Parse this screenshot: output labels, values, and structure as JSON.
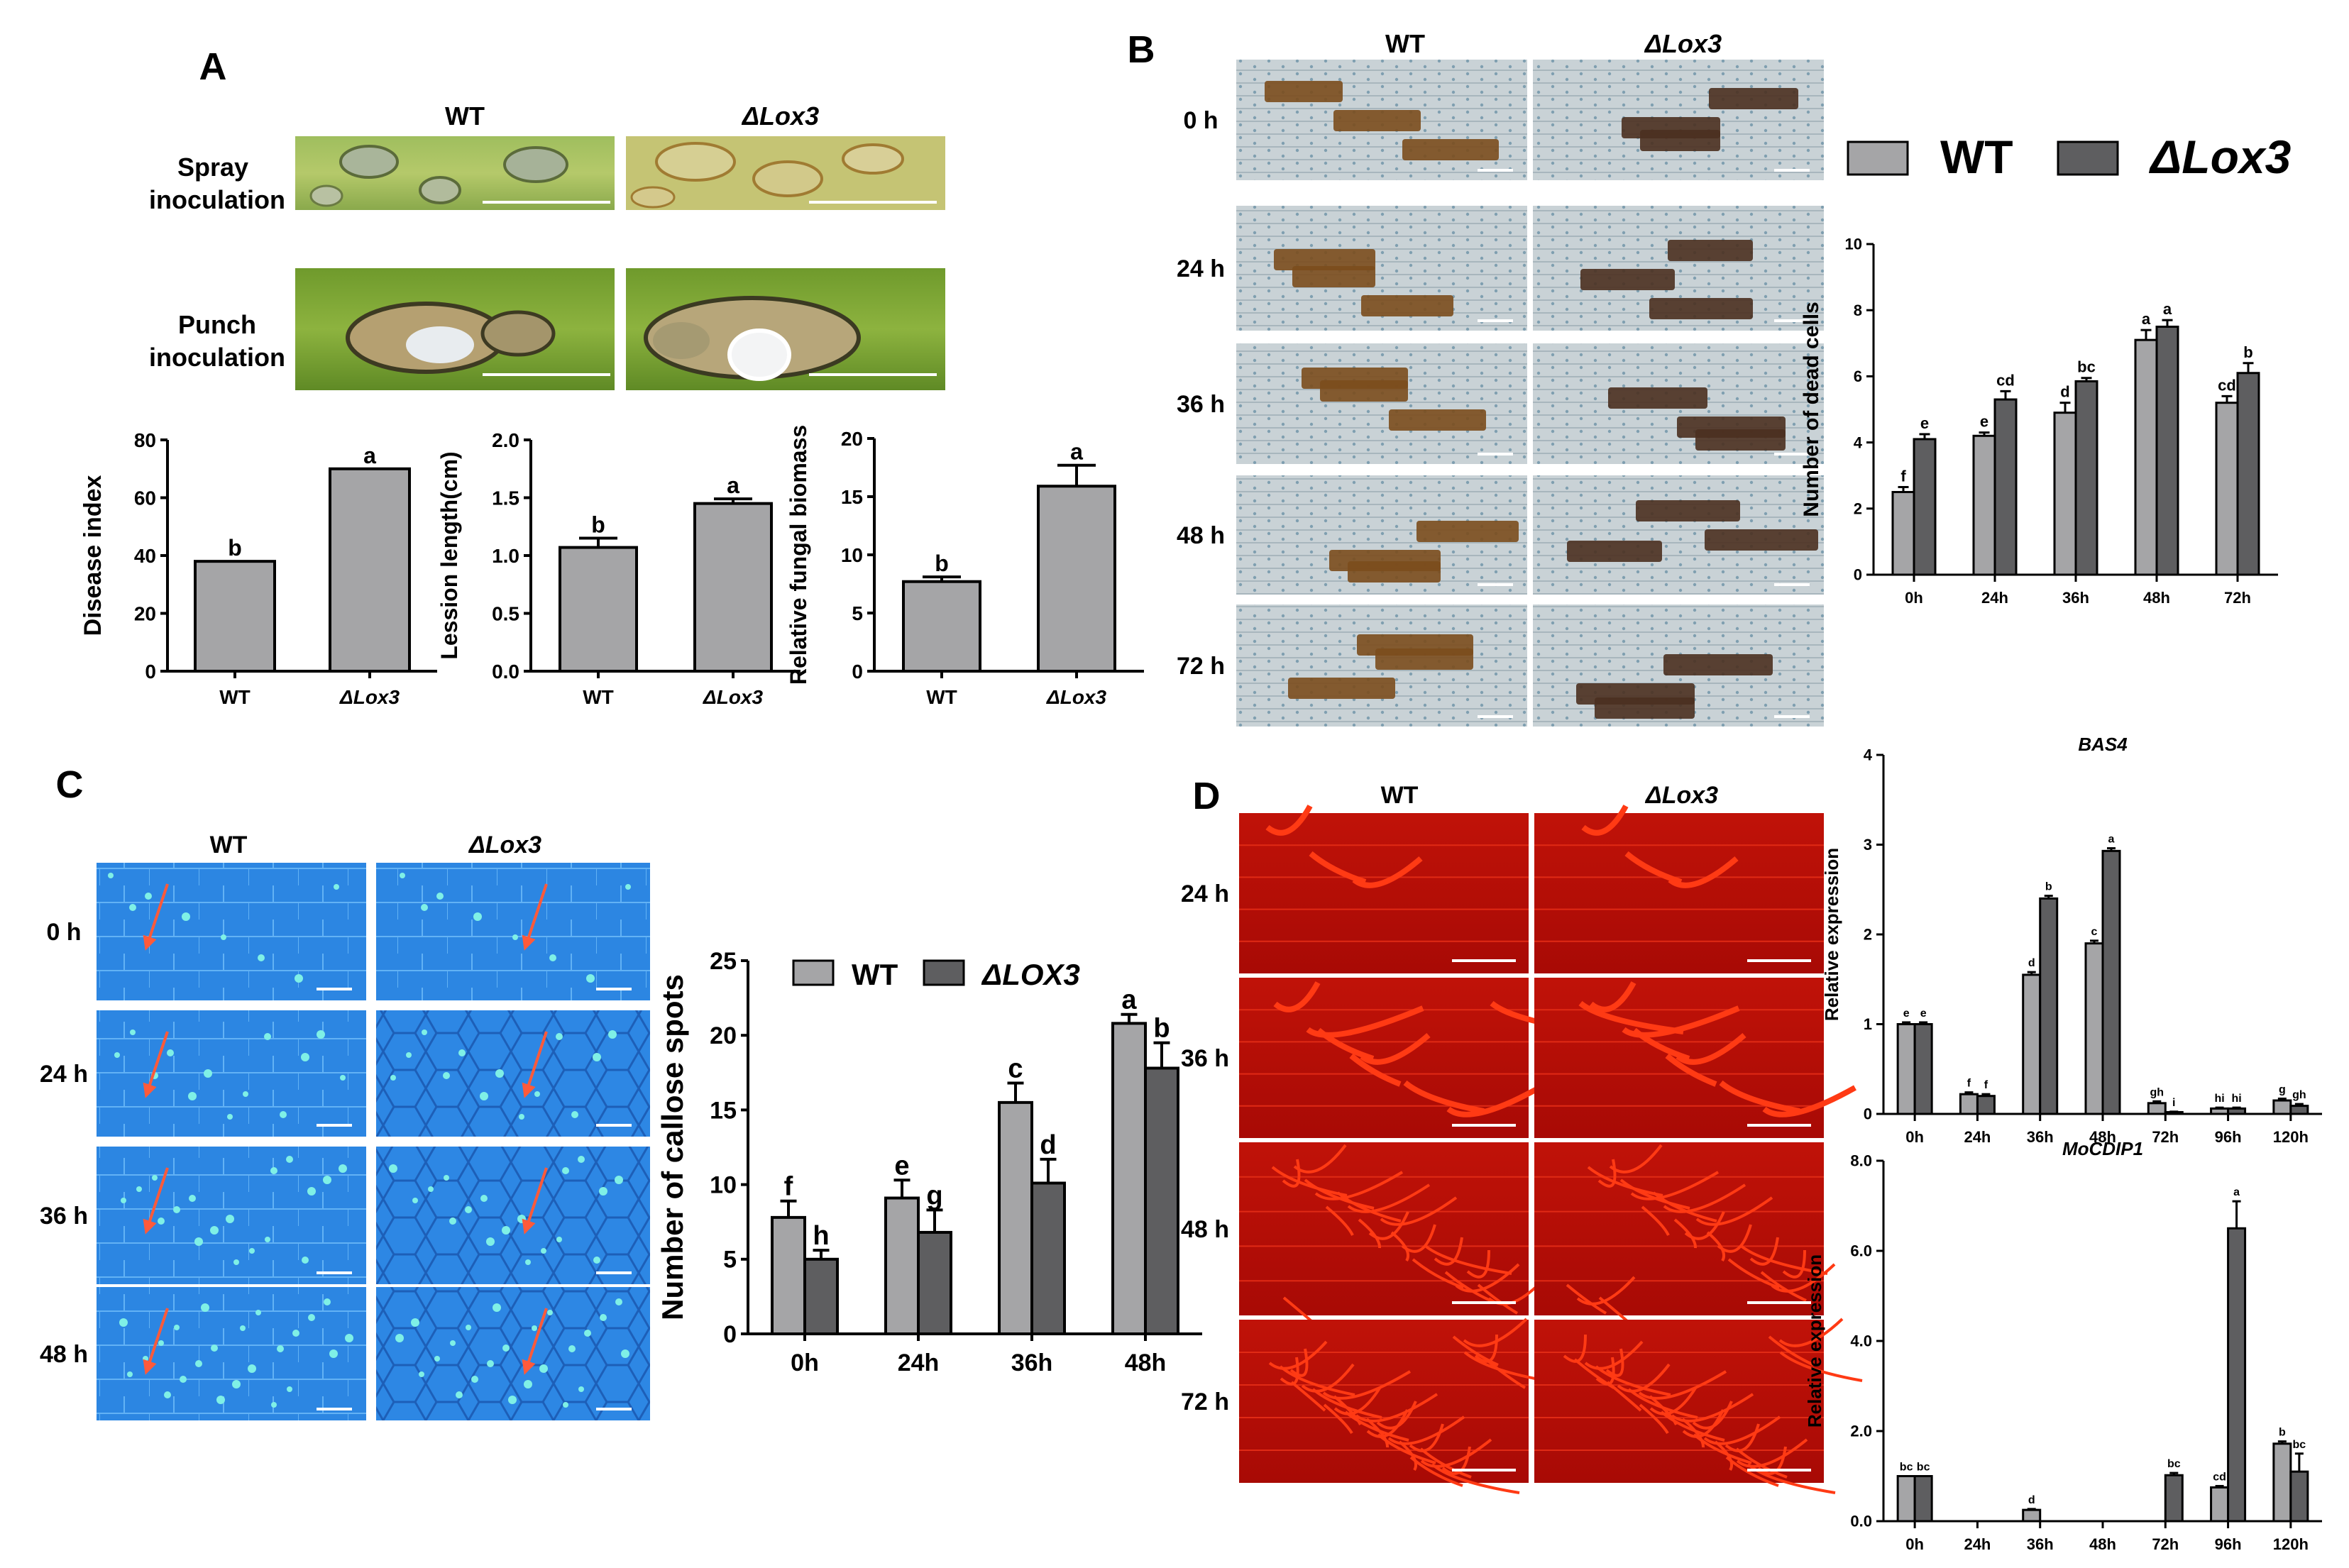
{
  "panels": {
    "A": {
      "letter": "A",
      "col_wt": "WT",
      "col_mut": "ΔLox3",
      "row_spray": [
        "Spray",
        "inoculation"
      ],
      "row_punch": [
        "Punch",
        "inoculation"
      ]
    },
    "B": {
      "letter": "B",
      "col_wt": "WT",
      "col_mut": "ΔLox3",
      "rows": [
        "0 h",
        "24 h",
        "36 h",
        "48 h",
        "72 h"
      ],
      "legend": [
        "WT",
        "ΔLox3"
      ]
    },
    "C": {
      "letter": "C",
      "col_wt": "WT",
      "col_mut": "ΔLox3",
      "rows": [
        "0 h",
        "24 h",
        "36 h",
        "48 h"
      ],
      "legend": [
        "WT",
        "ΔLOX3"
      ]
    },
    "D": {
      "letter": "D",
      "col_wt": "WT",
      "col_mut": "ΔLox3",
      "rows": [
        "24 h",
        "36 h",
        "48 h",
        "72 h"
      ]
    }
  },
  "colors": {
    "wt_bar": "#a5a5a7",
    "mut_bar": "#5e5e60",
    "leaf_green": "#8fae52",
    "stain_brown": "#6b4219",
    "callose_blue": "#2f8ee8",
    "hyphae_red": "#ff2a10"
  },
  "chart_data": [
    {
      "id": "A1",
      "type": "bar",
      "categories": [
        "WT",
        "ΔLox3"
      ],
      "values": [
        38,
        70
      ],
      "errors": [
        0,
        0
      ],
      "letters": [
        "b",
        "a"
      ],
      "ylabel": "Disease index",
      "ylim": [
        0,
        80
      ],
      "yticks": [
        "0",
        "20",
        "40",
        "60",
        "80"
      ]
    },
    {
      "id": "A2",
      "type": "bar",
      "categories": [
        "WT",
        "ΔLox3"
      ],
      "values": [
        1.07,
        1.45
      ],
      "errors": [
        0.08,
        0.04
      ],
      "letters": [
        "b",
        "a"
      ],
      "ylabel": "Lession length(cm)",
      "ylim": [
        0,
        2.0
      ],
      "yticks": [
        "0.0",
        "0.5",
        "1.0",
        "1.5",
        "2.0"
      ]
    },
    {
      "id": "A3",
      "type": "bar",
      "categories": [
        "WT",
        "ΔLox3"
      ],
      "values": [
        7.7,
        15.9
      ],
      "errors": [
        0.4,
        1.8
      ],
      "letters": [
        "b",
        "a"
      ],
      "ylabel": "Relative fungal biomass",
      "ylim": [
        0,
        20
      ],
      "yticks": [
        "0",
        "5",
        "10",
        "15",
        "20"
      ]
    },
    {
      "id": "B",
      "type": "bar",
      "categories": [
        "0h",
        "24h",
        "36h",
        "48h",
        "72h"
      ],
      "series": [
        {
          "name": "WT",
          "values": [
            2.5,
            4.2,
            4.9,
            7.1,
            5.2
          ],
          "errors": [
            0.15,
            0.1,
            0.3,
            0.3,
            0.2
          ],
          "letters": [
            "f",
            "e",
            "d",
            "a",
            "cd"
          ]
        },
        {
          "name": "ΔLox3",
          "values": [
            4.1,
            5.3,
            5.85,
            7.5,
            6.1
          ],
          "errors": [
            0.15,
            0.25,
            0.1,
            0.2,
            0.3
          ],
          "letters": [
            "e",
            "cd",
            "bc",
            "a",
            "b"
          ]
        }
      ],
      "ylabel": "Number of dead cells",
      "ylim": [
        0,
        10
      ],
      "yticks": [
        "0",
        "2",
        "4",
        "6",
        "8",
        "10"
      ]
    },
    {
      "id": "C",
      "type": "bar",
      "categories": [
        "0h",
        "24h",
        "36h",
        "48h"
      ],
      "series": [
        {
          "name": "WT",
          "values": [
            7.8,
            9.1,
            15.5,
            20.8
          ],
          "errors": [
            1.1,
            1.2,
            1.3,
            0.6
          ],
          "letters": [
            "f",
            "e",
            "c",
            "a"
          ]
        },
        {
          "name": "ΔLOX3",
          "values": [
            5.0,
            6.8,
            10.1,
            17.8
          ],
          "errors": [
            0.6,
            1.5,
            1.6,
            1.7
          ],
          "letters": [
            "h",
            "g",
            "d",
            "b"
          ]
        }
      ],
      "ylabel": "Number of callose spots",
      "ylim": [
        0,
        25
      ],
      "yticks": [
        "0",
        "5",
        "10",
        "15",
        "20",
        "25"
      ]
    },
    {
      "id": "D1",
      "type": "bar",
      "title": "BAS4",
      "categories": [
        "0h",
        "24h",
        "36h",
        "48h",
        "72h",
        "96h",
        "120h"
      ],
      "series": [
        {
          "name": "WT",
          "values": [
            1.0,
            0.22,
            1.55,
            1.9,
            0.12,
            0.06,
            0.15
          ],
          "errors": [
            0.02,
            0.02,
            0.03,
            0.03,
            0.02,
            0.01,
            0.02
          ],
          "letters": [
            "e",
            "f",
            "d",
            "c",
            "gh",
            "hi",
            "g"
          ]
        },
        {
          "name": "ΔLox3",
          "values": [
            1.0,
            0.2,
            2.4,
            2.93,
            0.02,
            0.06,
            0.09
          ],
          "errors": [
            0.02,
            0.02,
            0.03,
            0.03,
            0.005,
            0.01,
            0.02
          ],
          "letters": [
            "e",
            "f",
            "b",
            "a",
            "i",
            "hi",
            "gh"
          ]
        }
      ],
      "ylabel": "Relative expression",
      "ylim": [
        0,
        4
      ],
      "yticks": [
        "0",
        "1",
        "2",
        "3",
        "4"
      ]
    },
    {
      "id": "D2",
      "type": "bar",
      "title": "MoCDIP1",
      "categories": [
        "0h",
        "24h",
        "36h",
        "48h",
        "72h",
        "96h",
        "120h"
      ],
      "series": [
        {
          "name": "WT",
          "values": [
            1.0,
            0.0,
            0.25,
            0.0,
            0.0,
            0.75,
            1.72
          ],
          "errors": [
            0.0,
            0.0,
            0.02,
            0.0,
            0.0,
            0.03,
            0.05
          ],
          "letters": [
            "bc",
            "",
            "d",
            "",
            "",
            "cd",
            "b"
          ]
        },
        {
          "name": "ΔLox3",
          "values": [
            1.0,
            0.0,
            0.0,
            0.0,
            1.02,
            6.5,
            1.1
          ],
          "errors": [
            0.0,
            0.0,
            0.0,
            0.0,
            0.05,
            0.6,
            0.4
          ],
          "letters": [
            "bc",
            "",
            "",
            "",
            "bc",
            "a",
            "bc"
          ]
        }
      ],
      "ylabel": "Relative expression",
      "ylim": [
        0,
        8
      ],
      "yticks": [
        "0.0",
        "2.0",
        "4.0",
        "6.0",
        "8.0"
      ]
    }
  ]
}
